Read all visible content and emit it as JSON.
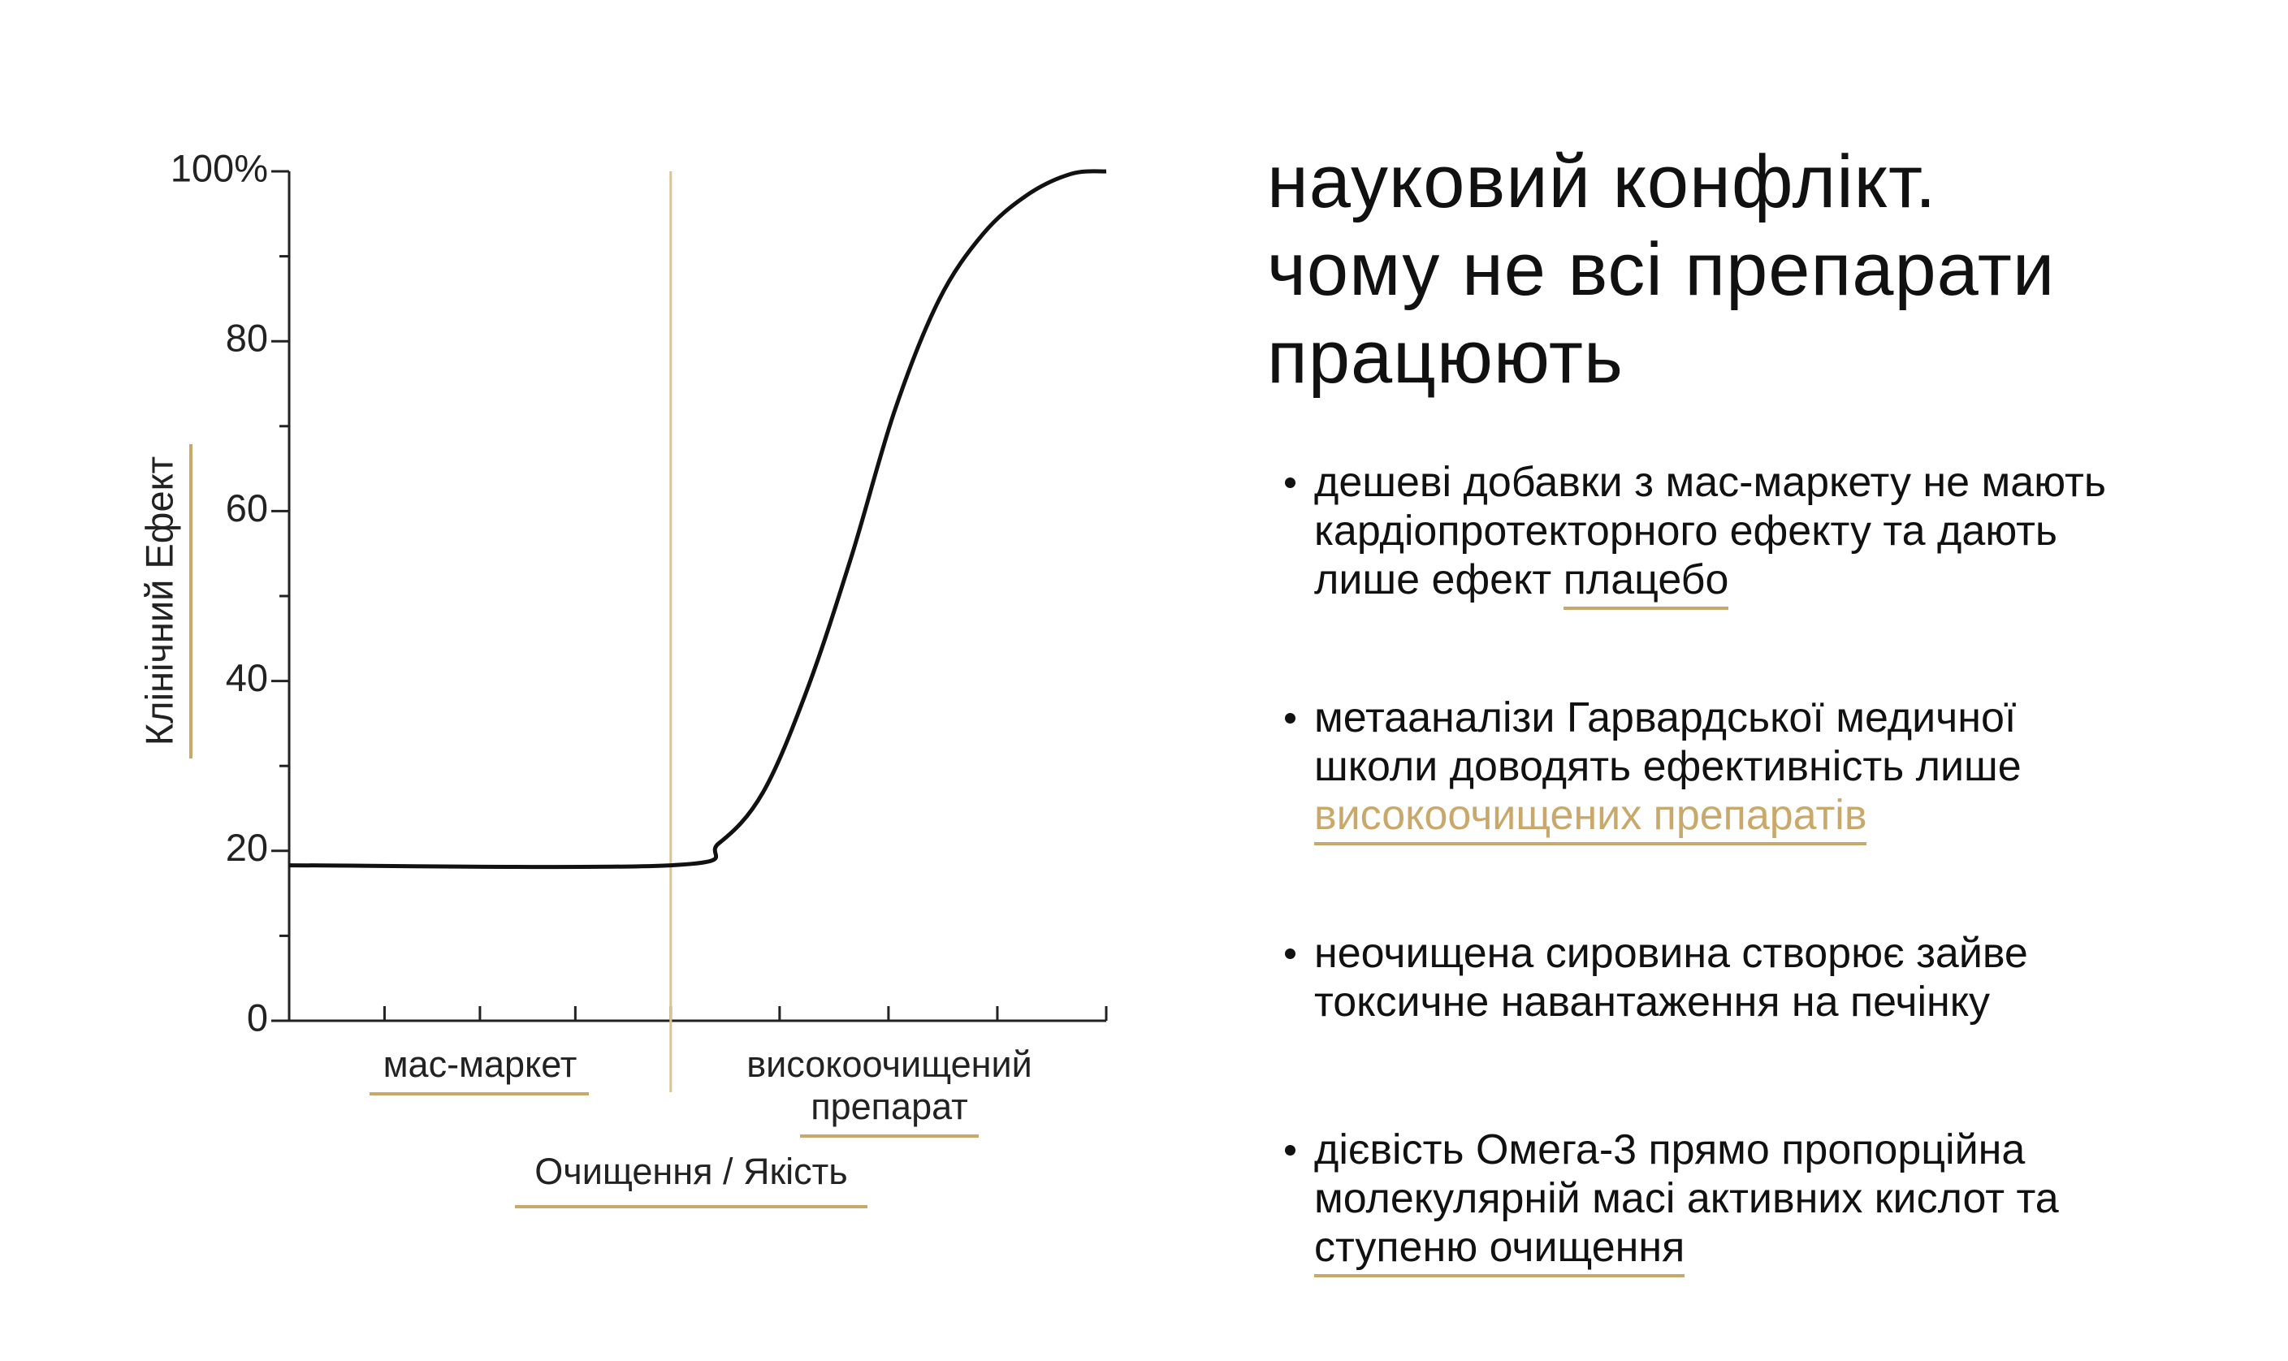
{
  "chart_data": {
    "type": "line",
    "y_label": "Клінічний Ефект",
    "x_label": "Очищення / Якість",
    "categories": [
      "мас-маркет",
      "високоочищений",
      "препарат"
    ],
    "x": [
      0,
      46.7,
      52.6,
      58,
      63.4,
      68.8,
      74.1,
      79.5,
      84.9,
      90.3,
      95.7,
      100
    ],
    "series": [
      {
        "color": "#111111",
        "values": [
          18.3,
          18.3,
          20.9,
          26.9,
          39,
          54.6,
          71.8,
          84.8,
          92.6,
          97.2,
          99.7,
          100
        ]
      }
    ],
    "divider": 46.7,
    "xlim": [
      0,
      100
    ],
    "ylim": [
      0,
      100
    ],
    "yticks": [
      0,
      20,
      40,
      60,
      80,
      {
        "value": 100,
        "label": "100%"
      }
    ]
  },
  "heading": [
    "науковий конфлікт.",
    "чому не всі препарати",
    "працюють"
  ],
  "bullets": [
    {
      "lines": [
        [
          {
            "text": "дешеві добавки з мас-маркету не мають"
          }
        ],
        [
          {
            "text": "кардіопротекторного ефекту та дають"
          }
        ],
        [
          {
            "text": "лише ефект "
          },
          {
            "text": "плацебо",
            "style": "underline"
          }
        ]
      ]
    },
    {
      "lines": [
        [
          {
            "text": "метааналізи Гарвардської медичної"
          }
        ],
        [
          {
            "text": "школи доводять ефективність лише"
          }
        ],
        [
          {
            "text": "високоочищених препаратів",
            "style": "gold"
          }
        ]
      ]
    },
    {
      "lines": [
        [
          {
            "text": "неочищена сировина створює зайве"
          }
        ],
        [
          {
            "text": "токсичне навантаження на печінку"
          }
        ]
      ]
    },
    {
      "lines": [
        [
          {
            "text": "дієвість Омега-3 прямо пропорційна"
          }
        ],
        [
          {
            "text": "молекулярній масі активних кислот та"
          }
        ],
        [
          {
            "text": "ступеню очищення",
            "style": "underline"
          }
        ]
      ]
    }
  ]
}
